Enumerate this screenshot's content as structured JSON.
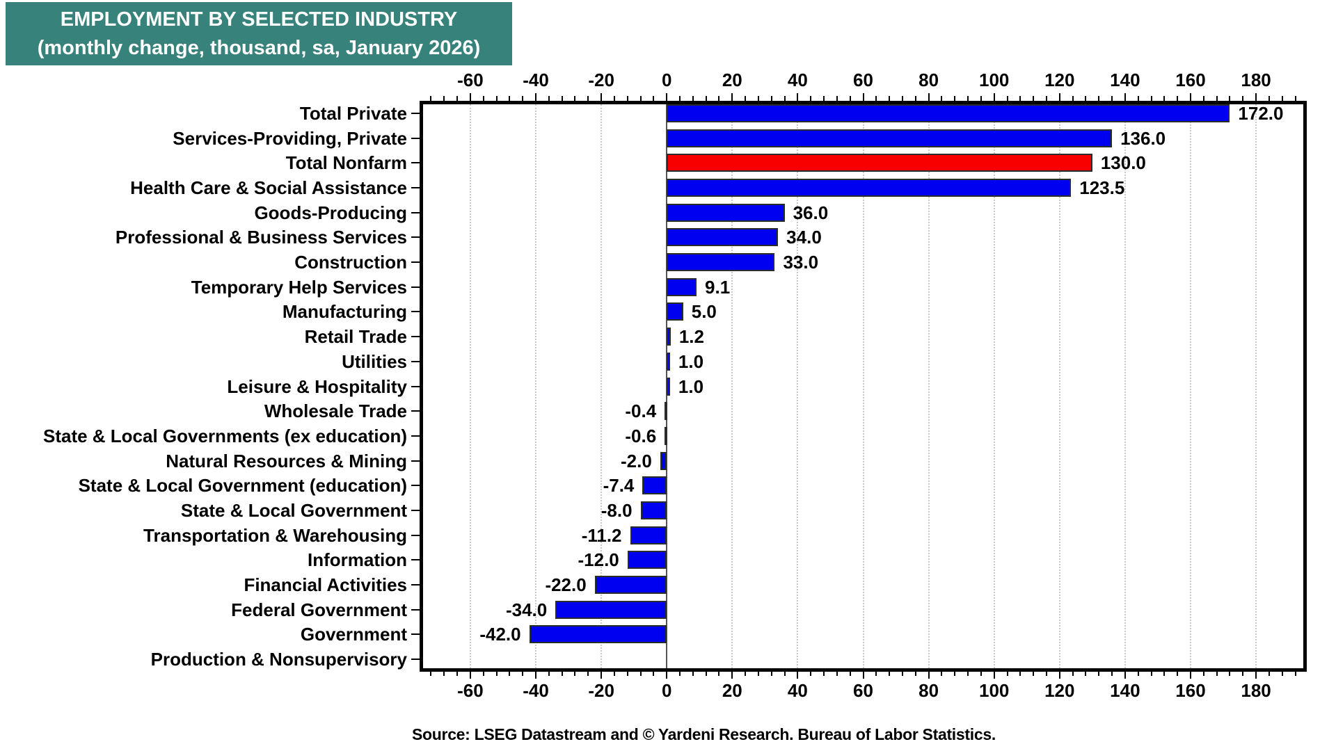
{
  "header": {
    "title_line1": "EMPLOYMENT BY SELECTED INDUSTRY",
    "title_line2": "(monthly change, thousand, sa, January 2026)",
    "bg_color": "#37827A",
    "text_color": "#FFFFFF"
  },
  "source_note": "Source: LSEG Datastream and © Yardeni Research. Bureau of Labor Statistics.",
  "chart_data": {
    "type": "bar",
    "orientation": "horizontal",
    "title": "EMPLOYMENT BY SELECTED INDUSTRY (monthly change, thousand, sa, January 2026)",
    "xlabel": "",
    "ylabel": "",
    "categories": [
      "Total Private",
      "Services-Providing, Private",
      "Total Nonfarm",
      "Health Care & Social Assistance",
      "Goods-Producing",
      "Professional & Business Services",
      "Construction",
      "Temporary Help Services",
      "Manufacturing",
      "Retail Trade",
      "Utilities",
      "Leisure & Hospitality",
      "Wholesale Trade",
      "State & Local Governments (ex education)",
      "Natural Resources & Mining",
      "State & Local Government (education)",
      "State & Local Government",
      "Transportation & Warehousing",
      "Information",
      "Financial Activities",
      "Federal Government",
      "Government",
      "Production & Nonsupervisory"
    ],
    "values": [
      172.0,
      136.0,
      130.0,
      123.5,
      36.0,
      34.0,
      33.0,
      9.1,
      5.0,
      1.2,
      1.0,
      1.0,
      -0.4,
      -0.6,
      -2.0,
      -7.4,
      -8.0,
      -11.2,
      -12.0,
      -22.0,
      -34.0,
      -42.0,
      null
    ],
    "highlight_category": "Total Nonfarm",
    "highlight_index": 2,
    "bar_color": "#0000F0",
    "highlight_color": "#F80000",
    "bar_border_color": "#2B2B2B",
    "value_label_decimals": 1,
    "xlim": [
      -75.5,
      195.5
    ],
    "xticks": [
      -60,
      -40,
      -20,
      0,
      20,
      40,
      60,
      80,
      100,
      120,
      140,
      160,
      180
    ],
    "minor_tick_step": 4,
    "axis_label_positions": [
      "top",
      "bottom"
    ],
    "grid": {
      "show": true,
      "style": "dotted",
      "color": "#C9C9C9",
      "zero_line_color": "#555555"
    },
    "legend": "none"
  }
}
